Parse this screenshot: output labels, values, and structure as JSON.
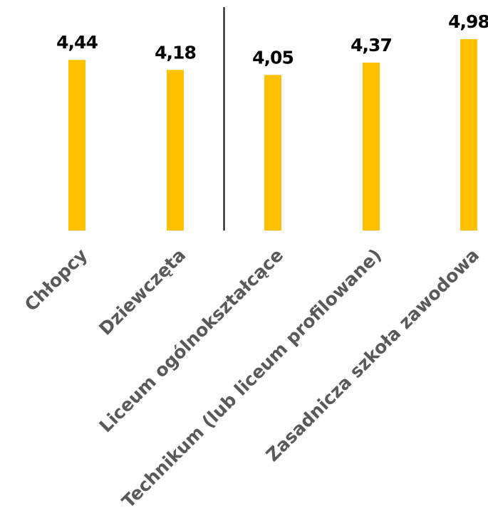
{
  "chart_data": {
    "type": "bar",
    "categories": [
      "Chłopcy",
      "Dziewczęta",
      "Liceum ogólnokształcące",
      "Technikum (lub liceum profilowane)",
      "Zasadnicza szkoła zawodowa"
    ],
    "values": [
      4.44,
      4.18,
      4.05,
      4.37,
      4.98
    ],
    "value_labels": [
      "4,44",
      "4,18",
      "4,05",
      "4,37",
      "4,98"
    ],
    "title": "",
    "xlabel": "",
    "ylabel": "",
    "ylim": [
      0,
      5.4
    ],
    "grid": false,
    "legend": "none",
    "separator_after_category": 2
  },
  "colors": {
    "bar": "#FFC000",
    "separator": "#000000",
    "value_text": "#000000",
    "category_text": "#595959"
  }
}
